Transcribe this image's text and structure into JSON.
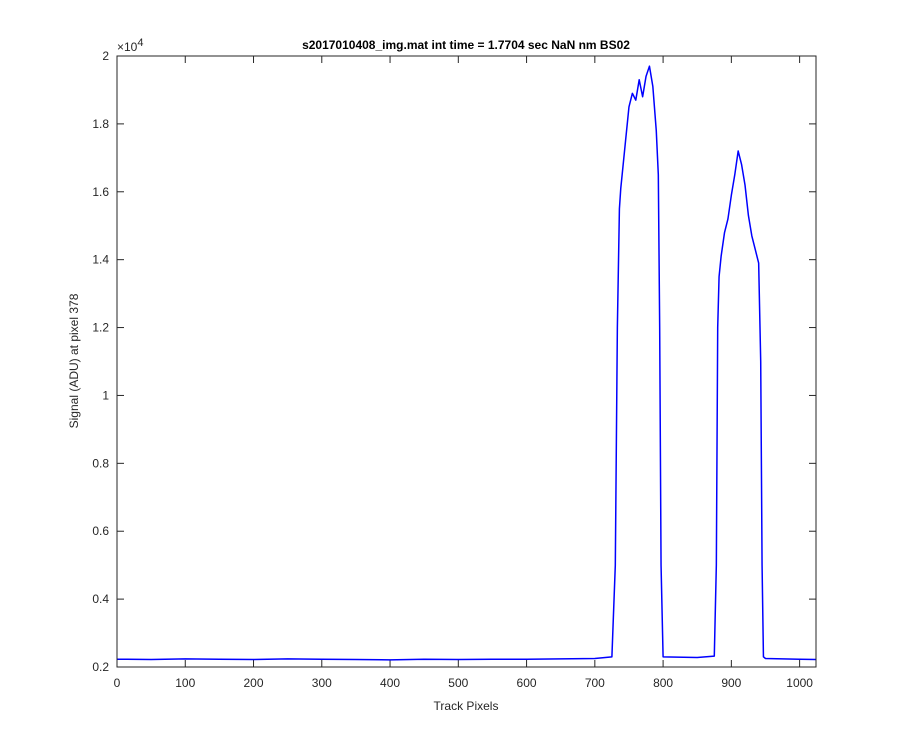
{
  "chart_data": {
    "type": "line",
    "title": "s2017010408_img.mat int time = 1.7704 sec  NaN nm BS02",
    "xlabel": "Track Pixels",
    "ylabel": "Signal (ADU) at pixel 378",
    "xlim": [
      0,
      1024
    ],
    "ylim": [
      2000,
      20000
    ],
    "y_multiplier": "×10",
    "y_multiplier_exp": "4",
    "x_ticks": [
      0,
      100,
      200,
      300,
      400,
      500,
      600,
      700,
      800,
      900,
      1000
    ],
    "x_tick_labels": [
      "0",
      "100",
      "200",
      "300",
      "400",
      "500",
      "600",
      "700",
      "800",
      "900",
      "1000"
    ],
    "y_ticks": [
      2000,
      4000,
      6000,
      8000,
      10000,
      12000,
      14000,
      16000,
      18000,
      20000
    ],
    "y_tick_labels": [
      "0.2",
      "0.4",
      "0.6",
      "0.8",
      "1",
      "1.2",
      "1.4",
      "1.6",
      "1.8",
      "2"
    ],
    "grid": false,
    "series": [
      {
        "color": "#0000ff",
        "x": [
          0,
          50,
          100,
          150,
          200,
          250,
          300,
          350,
          400,
          450,
          500,
          550,
          600,
          650,
          700,
          725,
          730,
          733,
          736,
          738,
          740,
          745,
          750,
          755,
          760,
          765,
          770,
          775,
          780,
          785,
          790,
          793,
          795,
          797,
          800,
          850,
          875,
          878,
          880,
          882,
          885,
          890,
          895,
          900,
          905,
          910,
          915,
          920,
          925,
          930,
          935,
          940,
          943,
          945,
          947,
          950,
          1000,
          1024
        ],
        "values": [
          2230,
          2220,
          2240,
          2230,
          2220,
          2240,
          2230,
          2220,
          2210,
          2230,
          2220,
          2230,
          2230,
          2240,
          2250,
          2300,
          5000,
          12000,
          15500,
          16100,
          16500,
          17500,
          18500,
          18900,
          18700,
          19300,
          18800,
          19400,
          19700,
          19100,
          17800,
          16500,
          12000,
          5000,
          2300,
          2280,
          2320,
          5000,
          12000,
          13500,
          14100,
          14800,
          15200,
          15900,
          16500,
          17200,
          16800,
          16200,
          15300,
          14700,
          14300,
          13900,
          11000,
          5000,
          2300,
          2250,
          2230,
          2220
        ]
      }
    ]
  }
}
